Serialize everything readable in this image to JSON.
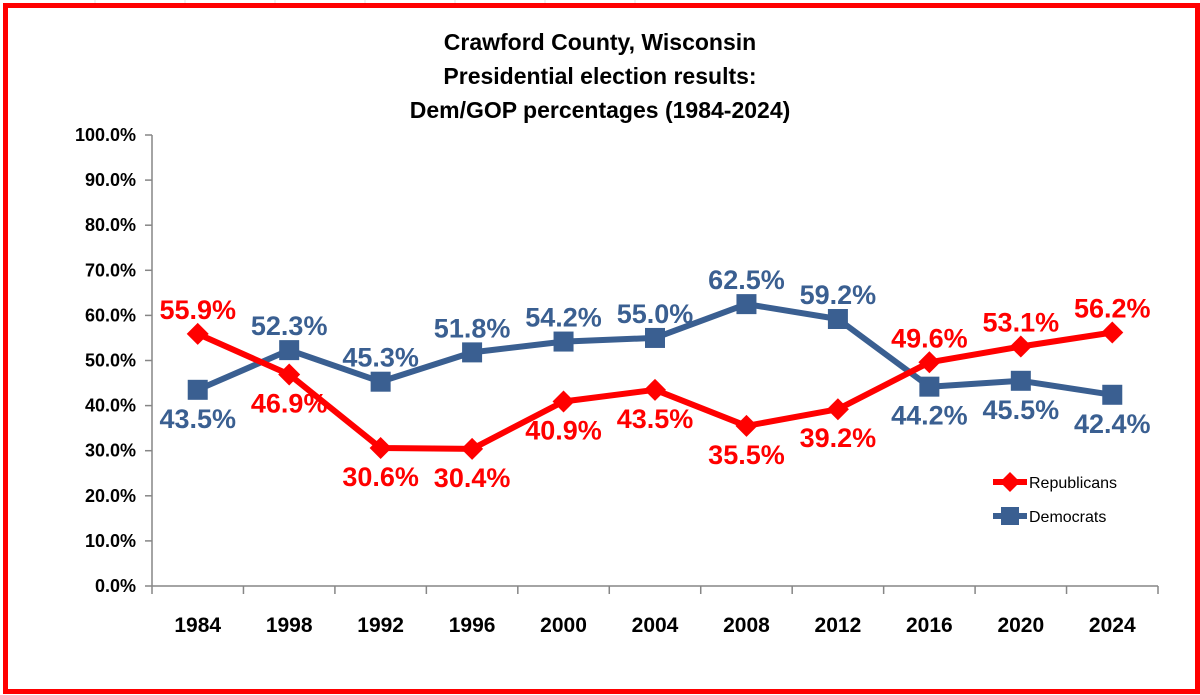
{
  "colors": {
    "frame": "#ff0000",
    "republicans": "#ff0000",
    "democrats": "#3a5f91",
    "gridline": "#d9d9d9",
    "axis": "#868686"
  },
  "chart_data": {
    "type": "line",
    "title_lines": [
      "Crawford County, Wisconsin",
      "Presidential election results:",
      "Dem/GOP percentages (1984-2024)"
    ],
    "categories": [
      "1984",
      "1998",
      "1992",
      "1996",
      "2000",
      "2004",
      "2008",
      "2012",
      "2016",
      "2020",
      "2024"
    ],
    "series": [
      {
        "name": "Republicans",
        "marker": "diamond",
        "values": [
          55.9,
          46.9,
          30.6,
          30.4,
          40.9,
          43.5,
          35.5,
          39.2,
          49.6,
          53.1,
          56.2
        ],
        "labels": [
          "55.9%",
          "46.9%",
          "30.6%",
          "30.4%",
          "40.9%",
          "43.5%",
          "35.5%",
          "39.2%",
          "49.6%",
          "53.1%",
          "56.2%"
        ]
      },
      {
        "name": "Democrats",
        "marker": "square",
        "values": [
          43.5,
          52.3,
          45.3,
          51.8,
          54.2,
          55.0,
          62.5,
          59.2,
          44.2,
          45.5,
          42.4
        ],
        "labels": [
          "43.5%",
          "52.3%",
          "45.3%",
          "51.8%",
          "54.2%",
          "55.0%",
          "62.5%",
          "59.2%",
          "44.2%",
          "45.5%",
          "42.4%"
        ]
      }
    ],
    "ylim": [
      0,
      100
    ],
    "yticks": [
      "0.0%",
      "10.0%",
      "20.0%",
      "30.0%",
      "40.0%",
      "50.0%",
      "60.0%",
      "70.0%",
      "80.0%",
      "90.0%",
      "100.0%"
    ],
    "xlabel": "",
    "ylabel": "",
    "grid": false,
    "legend_position": "right"
  }
}
